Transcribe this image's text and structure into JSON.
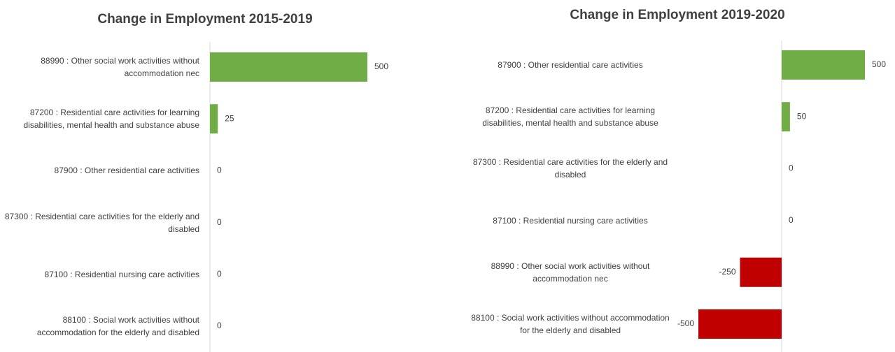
{
  "chart_data": [
    {
      "type": "bar",
      "orientation": "horizontal",
      "title": "Change in Employment 2015-2019",
      "categories": [
        "88990 : Other social work activities without accommodation nec",
        "87200 : Residential care activities for learning disabilities, mental health and substance abuse",
        "87900 : Other residential care activities",
        "87300 : Residential care activities for the elderly and disabled",
        "87100 : Residential nursing care activities",
        "88100 : Social work activities without accommodation for the elderly and disabled"
      ],
      "values": [
        500,
        25,
        0,
        0,
        0,
        0
      ],
      "xlim": [
        0,
        600
      ],
      "color": "#70ad47",
      "negative_color": "#c00000"
    },
    {
      "type": "bar",
      "orientation": "horizontal",
      "title": "Change in Employment 2019-2020",
      "categories": [
        "87900 : Other residential care activities",
        "87200 : Residential care activities for learning disabilities, mental health and substance abuse",
        "87300 : Residential care activities for the elderly and disabled",
        "87100 : Residential nursing care activities",
        "88990 : Other social work activities without accommodation nec",
        "88100 : Social work activities without accommodation for the elderly and disabled"
      ],
      "values": [
        500,
        50,
        0,
        0,
        -250,
        -500
      ],
      "xlim": [
        -500,
        500
      ],
      "color": "#70ad47",
      "negative_color": "#c00000"
    }
  ]
}
